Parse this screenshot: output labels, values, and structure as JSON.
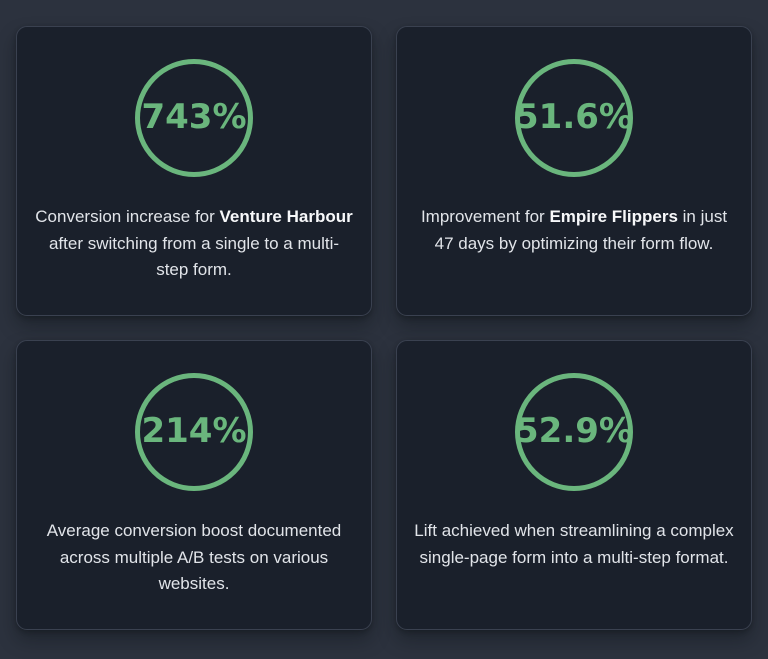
{
  "theme": {
    "page_bg": "#2c323e",
    "card_bg": "#1a202b",
    "card_border": "#3a4150",
    "accent_green": "#6ab67d",
    "text_color": "#e1e4e9",
    "bold_text_color": "#f7f8fa"
  },
  "cards": [
    {
      "stat": "743%",
      "parts": [
        {
          "text": "Conversion increase for "
        },
        {
          "text": "Venture Harbour",
          "bold": true
        },
        {
          "text": " after switching from a single to a multi-step form."
        }
      ]
    },
    {
      "stat": "51.6%",
      "parts": [
        {
          "text": "Improvement for "
        },
        {
          "text": "Empire Flippers",
          "bold": true
        },
        {
          "text": " in just 47 days by optimizing their form flow."
        }
      ]
    },
    {
      "stat": "214%",
      "parts": [
        {
          "text": "Average conversion boost documented across multiple A/B tests on various websites."
        }
      ]
    },
    {
      "stat": "52.9%",
      "parts": [
        {
          "text": "Lift achieved when streamlining a complex single-page form into a multi-step format."
        }
      ]
    }
  ]
}
